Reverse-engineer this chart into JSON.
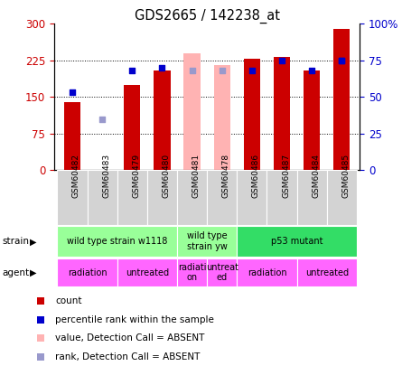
{
  "title": "GDS2665 / 142238_at",
  "samples": [
    "GSM60482",
    "GSM60483",
    "GSM60479",
    "GSM60480",
    "GSM60481",
    "GSM60478",
    "GSM60486",
    "GSM60487",
    "GSM60484",
    "GSM60485"
  ],
  "count_values": [
    140,
    null,
    175,
    205,
    null,
    null,
    228,
    232,
    205,
    290
  ],
  "count_absent": [
    null,
    null,
    null,
    null,
    240,
    215,
    null,
    null,
    null,
    null
  ],
  "rank_values": [
    null,
    null,
    68,
    70,
    null,
    null,
    68,
    75,
    68,
    75
  ],
  "rank_absent": [
    null,
    null,
    null,
    null,
    68,
    68,
    null,
    null,
    null,
    null
  ],
  "percentile_present": [
    53,
    null,
    null,
    null,
    null,
    null,
    null,
    null,
    null,
    75
  ],
  "percentile_absent": [
    null,
    35,
    null,
    null,
    null,
    null,
    null,
    null,
    null,
    null
  ],
  "ylim_left": [
    0,
    300
  ],
  "ylim_right": [
    0,
    100
  ],
  "yticks_left": [
    0,
    75,
    150,
    225,
    300
  ],
  "yticks_right": [
    0,
    25,
    50,
    75,
    100
  ],
  "ytick_labels_left": [
    "0",
    "75",
    "150",
    "225",
    "300"
  ],
  "ytick_labels_right": [
    "0",
    "25",
    "50",
    "75",
    "100%"
  ],
  "color_count": "#cc0000",
  "color_count_absent": "#ffb3b3",
  "color_rank": "#0000cc",
  "color_rank_absent": "#9999cc",
  "strain_groups": [
    {
      "label": "wild type strain w1118",
      "start": 0,
      "end": 3,
      "color": "#99ff99"
    },
    {
      "label": "wild type\nstrain yw",
      "start": 4,
      "end": 5,
      "color": "#99ff99"
    },
    {
      "label": "p53 mutant",
      "start": 6,
      "end": 9,
      "color": "#33dd66"
    }
  ],
  "agent_groups": [
    {
      "label": "radiation",
      "start": 0,
      "end": 1,
      "color": "#ff66ff"
    },
    {
      "label": "untreated",
      "start": 2,
      "end": 3,
      "color": "#ff66ff"
    },
    {
      "label": "radiati\non",
      "start": 4,
      "end": 4,
      "color": "#ff66ff"
    },
    {
      "label": "untreat\ned",
      "start": 5,
      "end": 5,
      "color": "#ff66ff"
    },
    {
      "label": "radiation",
      "start": 6,
      "end": 7,
      "color": "#ff66ff"
    },
    {
      "label": "untreated",
      "start": 8,
      "end": 9,
      "color": "#ff66ff"
    }
  ],
  "legend_items": [
    {
      "label": "count",
      "color": "#cc0000",
      "marker": "s"
    },
    {
      "label": "percentile rank within the sample",
      "color": "#0000cc",
      "marker": "s"
    },
    {
      "label": "value, Detection Call = ABSENT",
      "color": "#ffb3b3",
      "marker": "s"
    },
    {
      "label": "rank, Detection Call = ABSENT",
      "color": "#9999cc",
      "marker": "s"
    }
  ],
  "bar_width": 0.55,
  "scale": 3.0
}
